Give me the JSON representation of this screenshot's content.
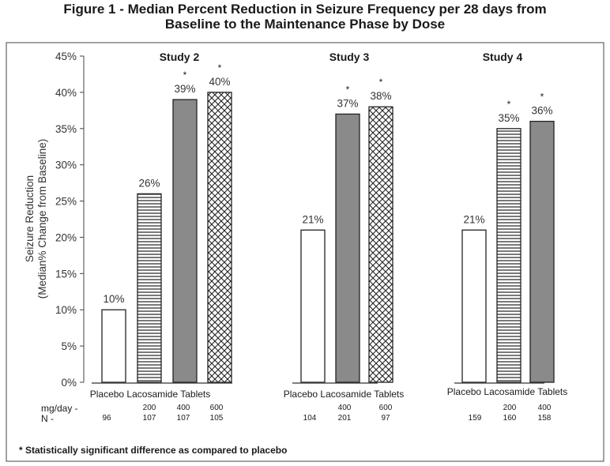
{
  "title_line1": "Figure 1 - Median Percent Reduction in Seizure Frequency per 28 days from",
  "title_line2": "Baseline to the Maintenance Phase by Dose",
  "footnote": "* Statistically significant difference as compared to placebo",
  "row_labels": {
    "dose": "mg/day -",
    "n": "N -"
  },
  "chart_data": {
    "type": "bar",
    "ylabel_line1": "Seizure Reduction",
    "ylabel_line2": "(Median% Change from Baseline)",
    "ylim": [
      0,
      45
    ],
    "yticks": [
      0,
      5,
      10,
      15,
      20,
      25,
      30,
      35,
      40,
      45
    ],
    "ytick_labels": [
      "0%",
      "5%",
      "10%",
      "15%",
      "20%",
      "25%",
      "30%",
      "35%",
      "40%",
      "45%"
    ],
    "grid": false,
    "groups": [
      {
        "name": "Study 2",
        "xlabel": "Placebo Lacosamide Tablets",
        "bars": [
          {
            "dose": "",
            "n": "96",
            "value": 10,
            "label": "10%",
            "pattern": "empty",
            "significant": false
          },
          {
            "dose": "200",
            "n": "107",
            "value": 26,
            "label": "26%",
            "pattern": "hlines",
            "significant": false
          },
          {
            "dose": "400",
            "n": "107",
            "value": 39,
            "label": "39%",
            "pattern": "solid",
            "significant": true
          },
          {
            "dose": "600",
            "n": "105",
            "value": 40,
            "label": "40%",
            "pattern": "crosshatch",
            "significant": true
          }
        ]
      },
      {
        "name": "Study 3",
        "xlabel": "Placebo Lacosamide Tablets",
        "bars": [
          {
            "dose": "",
            "n": "104",
            "value": 21,
            "label": "21%",
            "pattern": "empty",
            "significant": false
          },
          {
            "dose": "400",
            "n": "201",
            "value": 37,
            "label": "37%",
            "pattern": "solid",
            "significant": true
          },
          {
            "dose": "600",
            "n": "97",
            "value": 38,
            "label": "38%",
            "pattern": "crosshatch",
            "significant": true
          }
        ]
      },
      {
        "name": "Study 4",
        "xlabel": "Placebo Lacosamide Tablets",
        "bars": [
          {
            "dose": "",
            "n": "159",
            "value": 21,
            "label": "21%",
            "pattern": "empty",
            "significant": false
          },
          {
            "dose": "200",
            "n": "160",
            "value": 35,
            "label": "35%",
            "pattern": "hlines",
            "significant": true
          },
          {
            "dose": "400",
            "n": "158",
            "value": 36,
            "label": "36%",
            "pattern": "solid",
            "significant": true
          }
        ]
      }
    ],
    "significance_marker": "*",
    "colors": {
      "solid_fill": "#8a8a8a",
      "stroke": "#222222",
      "text": "#1a1a1a",
      "axis_text": "#333333"
    }
  }
}
